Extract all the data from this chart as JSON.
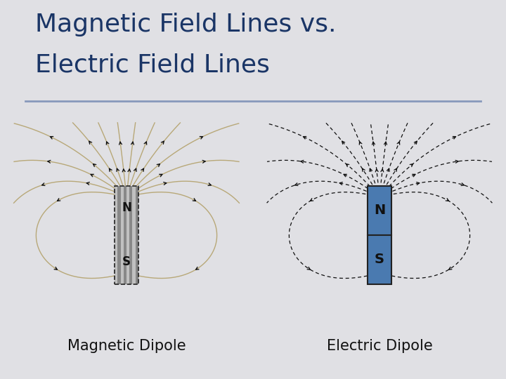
{
  "title_line1": "Magnetic Field Lines vs.",
  "title_line2": "Electric Field Lines",
  "title_color": "#1a3566",
  "title_fontsize": 26,
  "bg_color": "#e0e0e4",
  "separator_color": "#8899bb",
  "mag_label": "Magnetic Dipole",
  "elec_label": "Electric Dipole",
  "label_fontsize": 15,
  "label_color": "#111111",
  "N_label": "N",
  "S_label": "S",
  "magnet_color_mag": "#c0c0c0",
  "magnet_stripe_color": "#888888",
  "magnet_color_elec": "#4a7ab0",
  "magnet_border_mag": "#222222",
  "magnet_border_elec": "#222222",
  "field_line_color_mag": "#b8a878",
  "field_line_color_elec": "#111111",
  "ns_text_color_mag": "#111111",
  "ns_text_color_elec": "#111111",
  "arrow_color": "#111111"
}
